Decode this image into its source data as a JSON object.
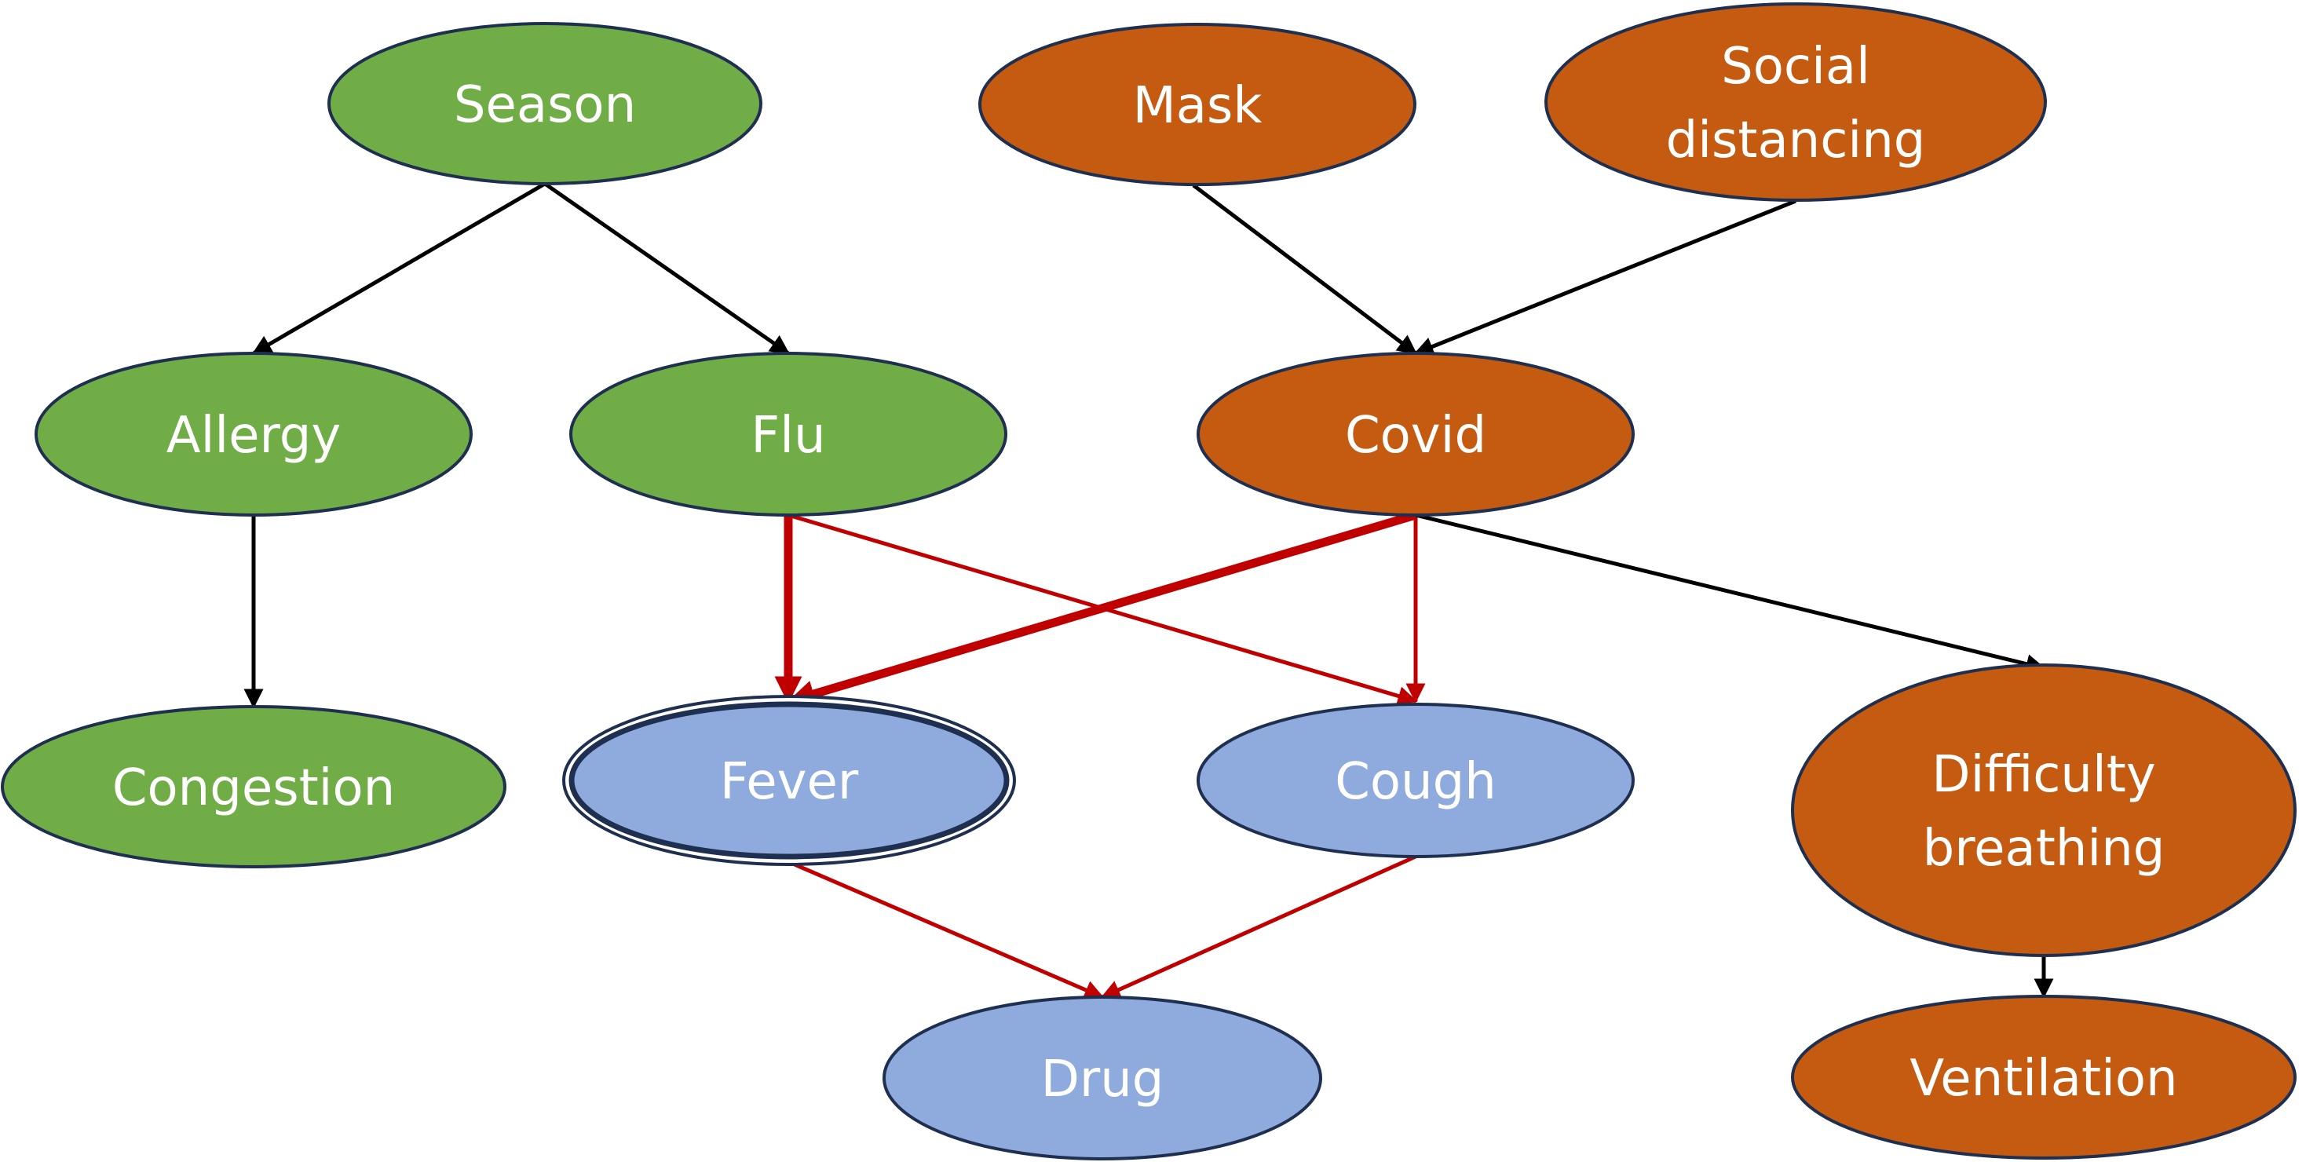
{
  "colors": {
    "green": "#70ad47",
    "orange": "#c55a11",
    "blue": "#8faadc",
    "outline": "#1f2f50",
    "black_edge": "#000000",
    "red_edge": "#c00000",
    "label": "#ffffff"
  },
  "nodes": {
    "season": {
      "label": "Season",
      "color": "green"
    },
    "mask": {
      "label": "Mask",
      "color": "orange"
    },
    "social_distancing": {
      "label_lines": [
        "Social",
        "distancing"
      ],
      "color": "orange"
    },
    "allergy": {
      "label": "Allergy",
      "color": "green"
    },
    "flu": {
      "label": "Flu",
      "color": "green"
    },
    "covid": {
      "label": "Covid",
      "color": "orange"
    },
    "congestion": {
      "label": "Congestion",
      "color": "green"
    },
    "fever": {
      "label": "Fever",
      "color": "blue",
      "double_border": true
    },
    "cough": {
      "label": "Cough",
      "color": "blue"
    },
    "difficulty_breathing": {
      "label_lines": [
        "Difficulty",
        "breathing"
      ],
      "color": "orange"
    },
    "drug": {
      "label": "Drug",
      "color": "blue"
    },
    "ventilation": {
      "label": "Ventilation",
      "color": "orange"
    }
  },
  "edges": [
    {
      "from": "season",
      "to": "allergy",
      "style": "black"
    },
    {
      "from": "season",
      "to": "flu",
      "style": "black"
    },
    {
      "from": "mask",
      "to": "covid",
      "style": "black"
    },
    {
      "from": "social_distancing",
      "to": "covid",
      "style": "black"
    },
    {
      "from": "allergy",
      "to": "congestion",
      "style": "black"
    },
    {
      "from": "flu",
      "to": "fever",
      "style": "red-thick"
    },
    {
      "from": "flu",
      "to": "cough",
      "style": "red"
    },
    {
      "from": "covid",
      "to": "fever",
      "style": "red-thick"
    },
    {
      "from": "covid",
      "to": "cough",
      "style": "red"
    },
    {
      "from": "covid",
      "to": "difficulty_breathing",
      "style": "black"
    },
    {
      "from": "fever",
      "to": "drug",
      "style": "red"
    },
    {
      "from": "cough",
      "to": "drug",
      "style": "red"
    },
    {
      "from": "difficulty_breathing",
      "to": "ventilation",
      "style": "black"
    }
  ]
}
